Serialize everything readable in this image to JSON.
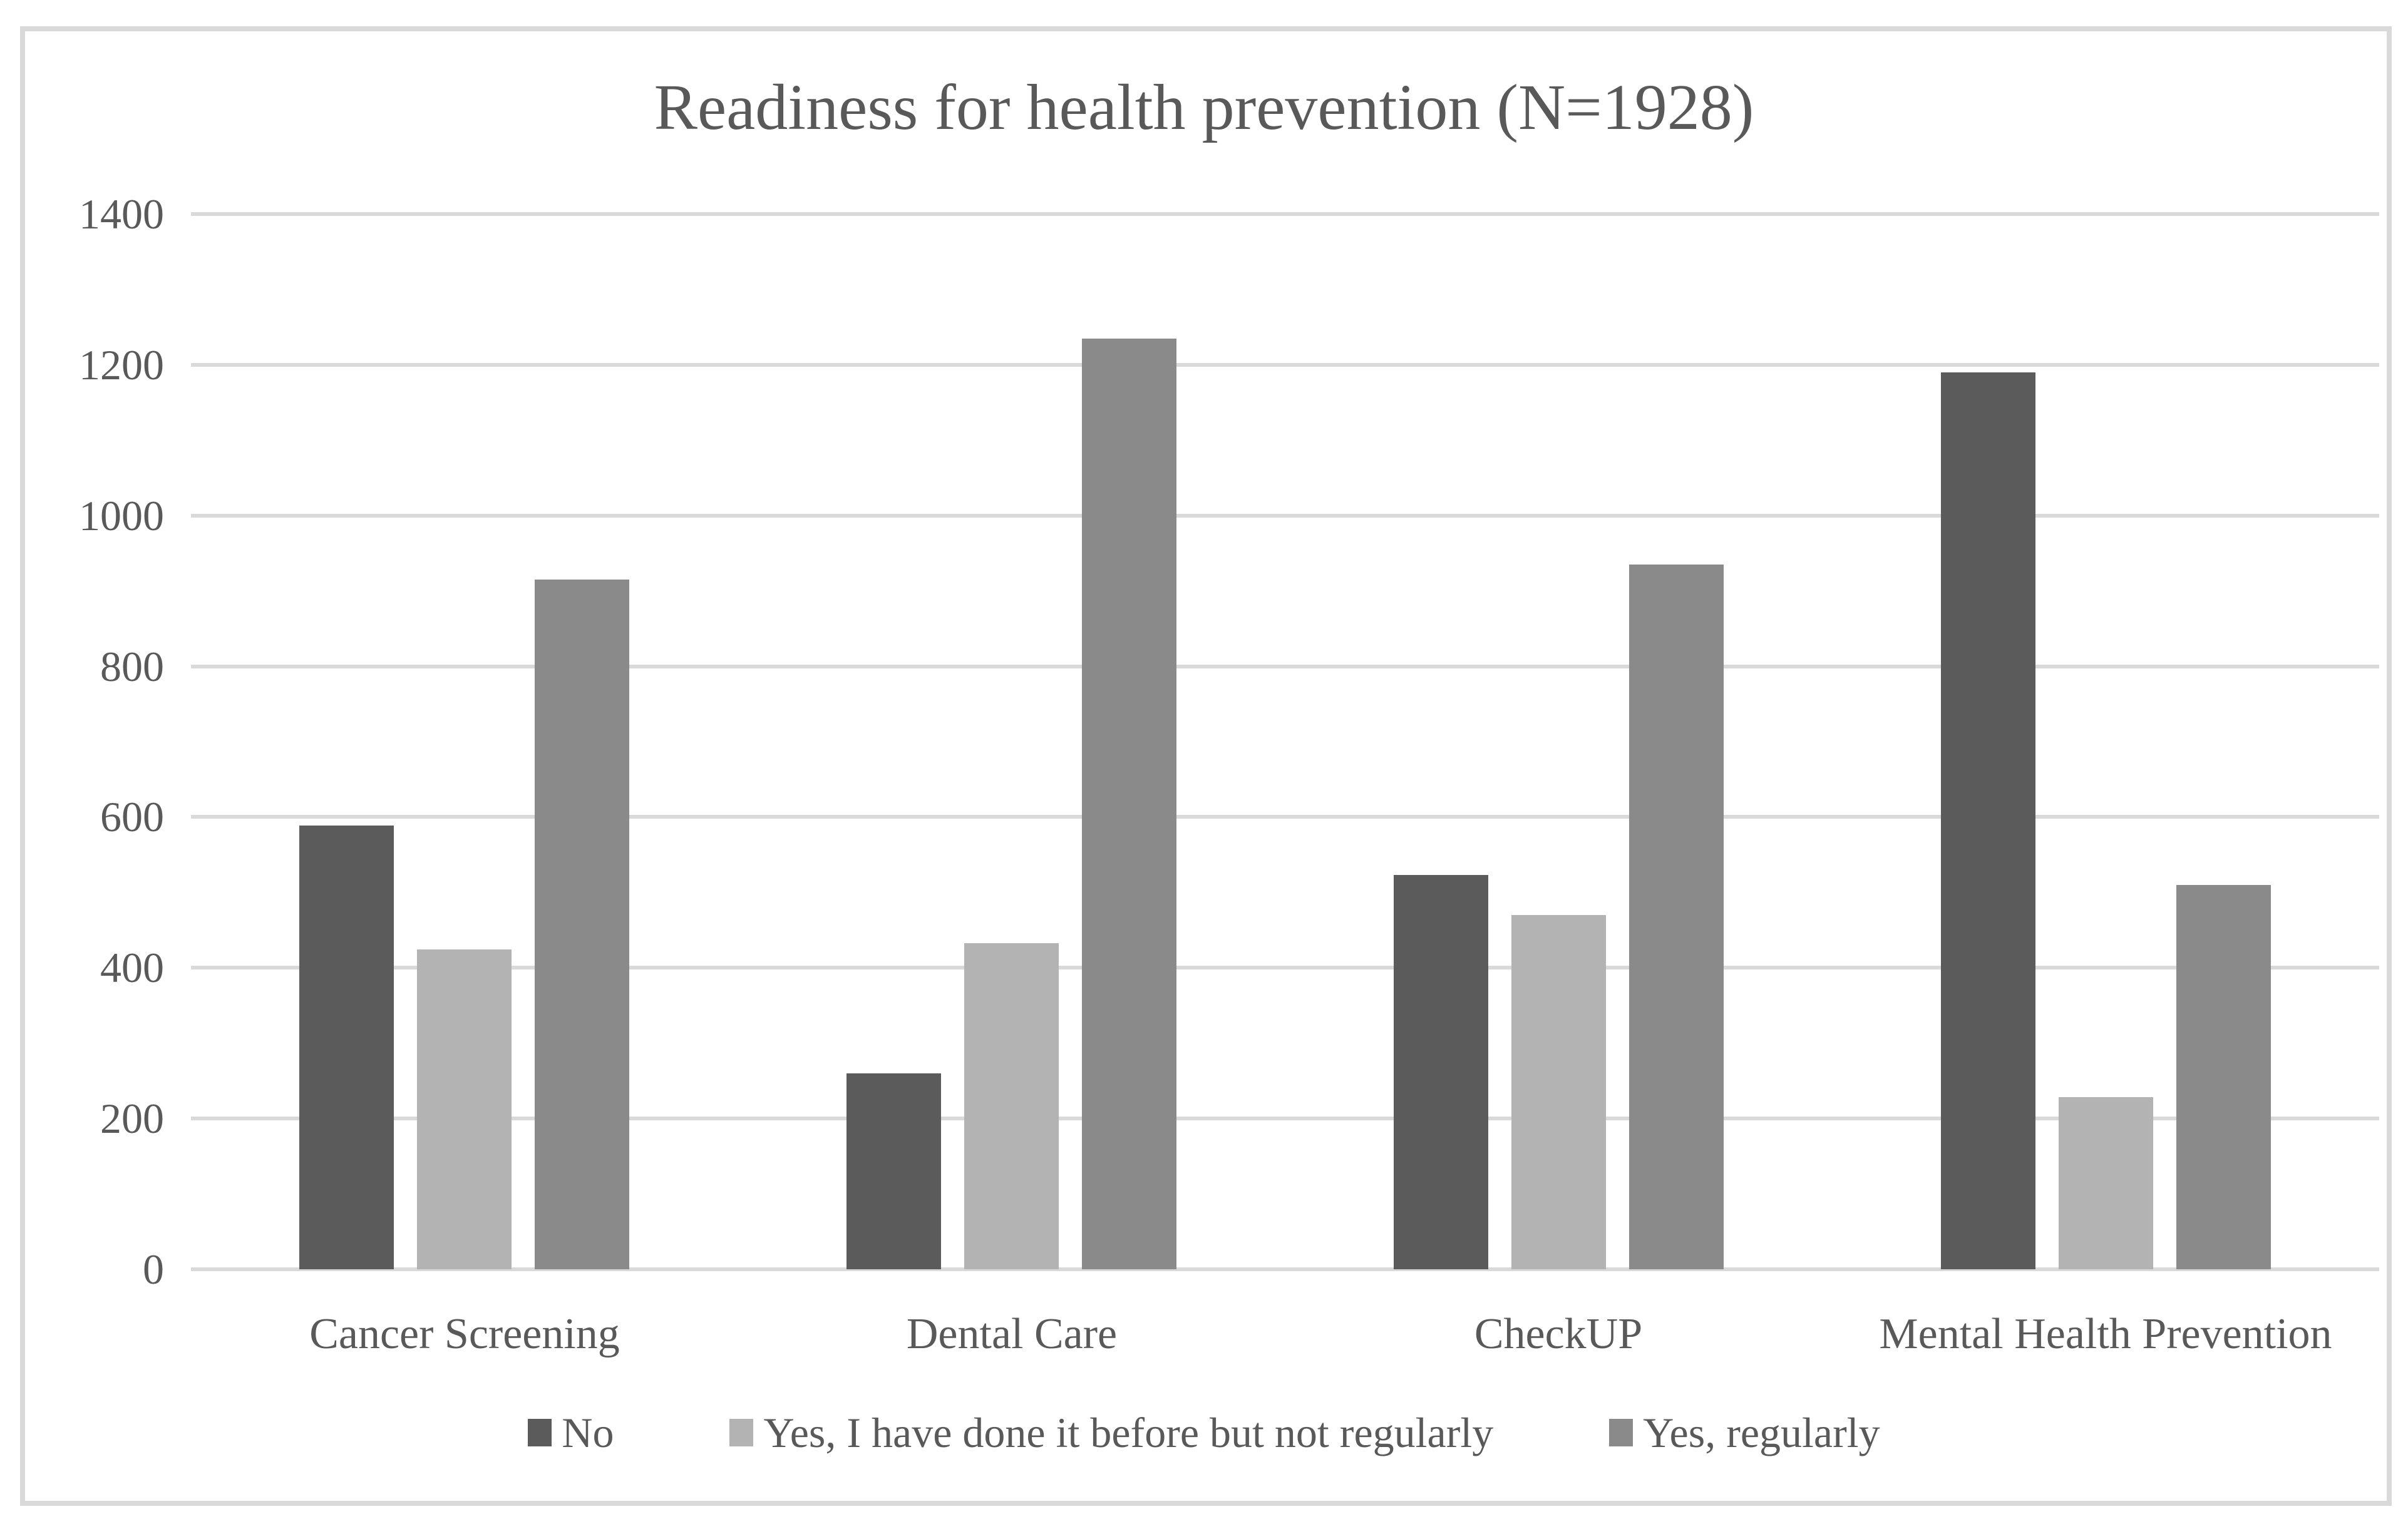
{
  "figure": {
    "background": "#ffffff",
    "border_color": "#d9d9d9",
    "text_color": "#595959"
  },
  "chart_data": {
    "type": "bar",
    "title": "Readiness for health prevention (N=1928)",
    "categories": [
      "Cancer Screening",
      "Dental Care",
      "CheckUP",
      "Mental Health Prevention"
    ],
    "series": [
      {
        "name": "No",
        "color": "#5b5b5b",
        "values": [
          589,
          260,
          523,
          1190
        ]
      },
      {
        "name": "Yes, I have done it before but not regularly",
        "color": "#b3b3b3",
        "values": [
          424,
          433,
          470,
          228
        ]
      },
      {
        "name": "Yes, regularly",
        "color": "#8a8a8a",
        "values": [
          915,
          1235,
          935,
          510
        ]
      }
    ],
    "xlabel": "",
    "ylabel": "",
    "ylim": [
      0,
      1400
    ],
    "yticks": [
      0,
      200,
      400,
      600,
      800,
      1000,
      1200,
      1400
    ],
    "grid": true,
    "gridline_color": "#d9d9d9",
    "axisline_color": "#d9d9d9",
    "legend_position": "bottom"
  }
}
